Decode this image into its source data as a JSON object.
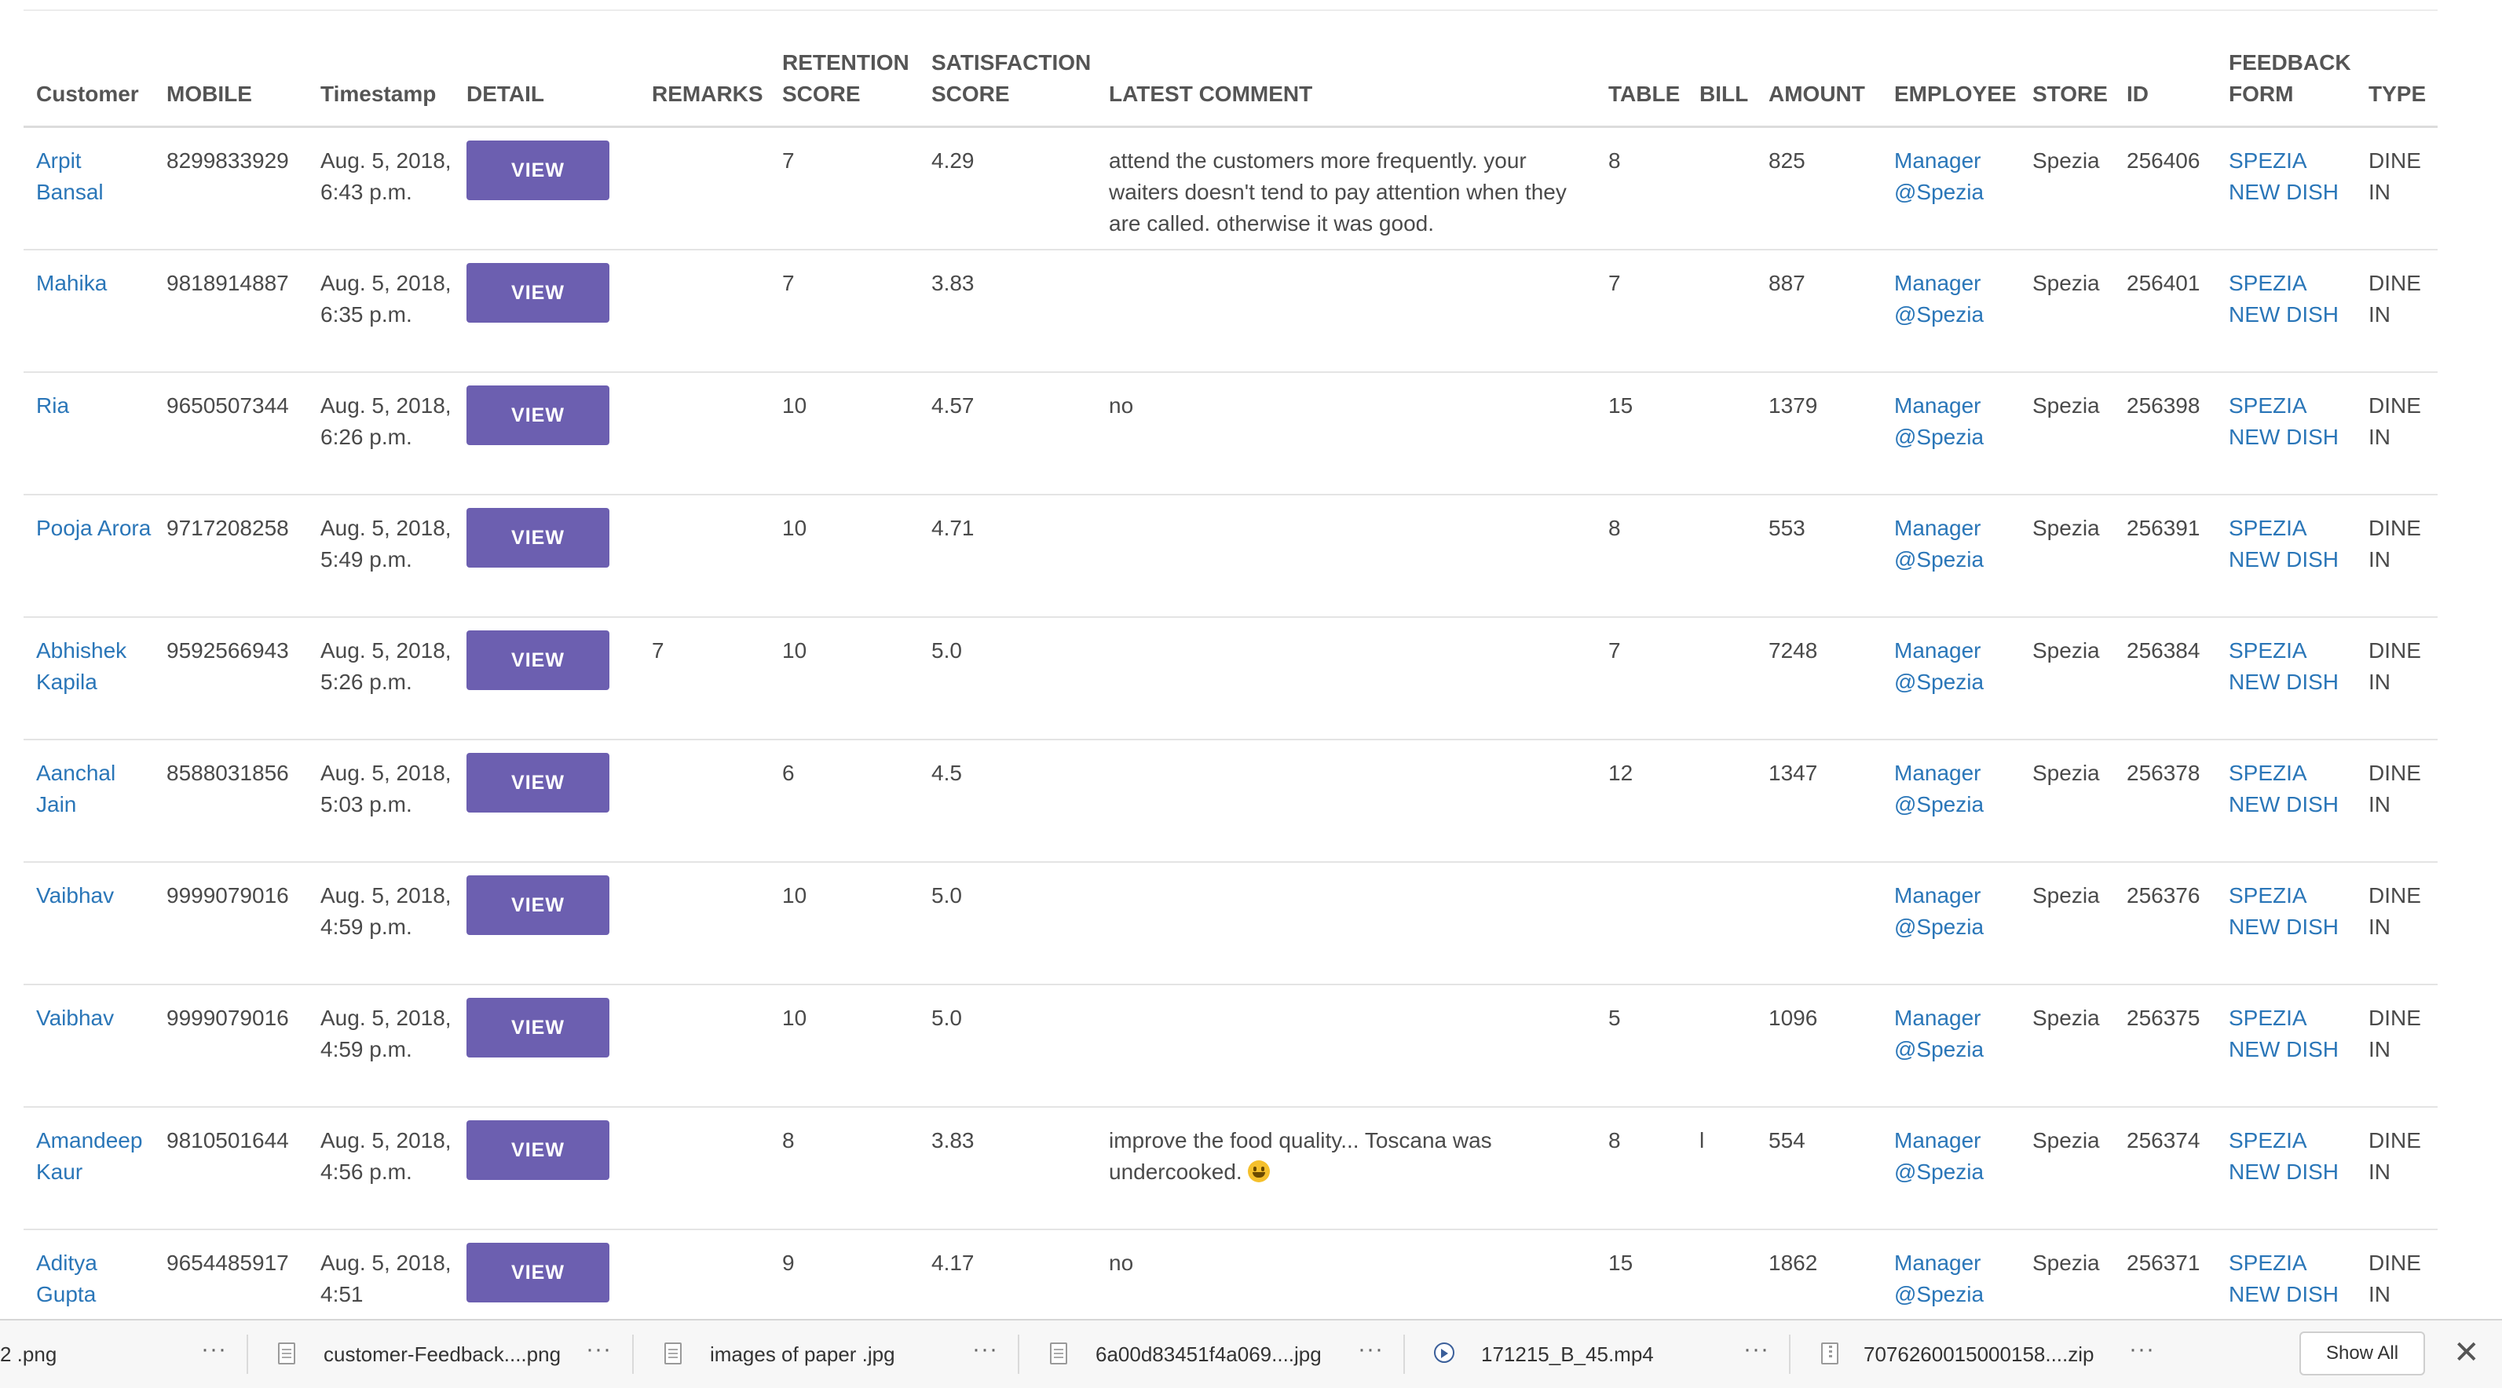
{
  "table": {
    "headers": {
      "customer": "Customer",
      "mobile": "MOBILE",
      "timestamp": "Timestamp",
      "detail": "DETAIL",
      "remarks": "REMARKS",
      "retention_l1": "RETENTION",
      "retention_l2": "SCORE",
      "satisfaction_l1": "SATISFACTION",
      "satisfaction_l2": "SCORE",
      "latest_comment": "LATEST COMMENT",
      "table": "TABLE",
      "bill": "BILL",
      "amount": "AMOUNT",
      "employee": "EMPLOYEE",
      "store": "STORE",
      "id": "ID",
      "feedback_l1": "FEEDBACK",
      "feedback_l2": "FORM",
      "type": "TYPE"
    },
    "view_label": "VIEW",
    "rows": [
      {
        "customer": "Arpit Bansal",
        "mobile": "8299833929",
        "timestamp": "Aug. 5, 2018, 6:43 p.m.",
        "remarks": "",
        "retention": "7",
        "satisfaction": "4.29",
        "comment": "attend the customers more frequently. your waiters doesn't tend to pay attention when they are called. otherwise it was good.",
        "table": "8",
        "bill": "",
        "amount": "825",
        "employee": "Manager @Spezia",
        "store": "Spezia",
        "id": "256406",
        "feedback_form": "SPEZIA NEW DISH",
        "type": "DINE IN"
      },
      {
        "customer": "Mahika",
        "mobile": "9818914887",
        "timestamp": "Aug. 5, 2018, 6:35 p.m.",
        "remarks": "",
        "retention": "7",
        "satisfaction": "3.83",
        "comment": "",
        "table": "7",
        "bill": "",
        "amount": "887",
        "employee": "Manager @Spezia",
        "store": "Spezia",
        "id": "256401",
        "feedback_form": "SPEZIA NEW DISH",
        "type": "DINE IN"
      },
      {
        "customer": "Ria",
        "mobile": "9650507344",
        "timestamp": "Aug. 5, 2018, 6:26 p.m.",
        "remarks": "",
        "retention": "10",
        "satisfaction": "4.57",
        "comment": "no",
        "table": "15",
        "bill": "",
        "amount": "1379",
        "employee": "Manager @Spezia",
        "store": "Spezia",
        "id": "256398",
        "feedback_form": "SPEZIA NEW DISH",
        "type": "DINE IN"
      },
      {
        "customer": "Pooja Arora",
        "mobile": "9717208258",
        "timestamp": "Aug. 5, 2018, 5:49 p.m.",
        "remarks": "",
        "retention": "10",
        "satisfaction": "4.71",
        "comment": "",
        "table": "8",
        "bill": "",
        "amount": "553",
        "employee": "Manager @Spezia",
        "store": "Spezia",
        "id": "256391",
        "feedback_form": "SPEZIA NEW DISH",
        "type": "DINE IN"
      },
      {
        "customer": "Abhishek Kapila",
        "mobile": "9592566943",
        "timestamp": "Aug. 5, 2018, 5:26 p.m.",
        "remarks": "7",
        "retention": "10",
        "satisfaction": "5.0",
        "comment": "",
        "table": "7",
        "bill": "",
        "amount": "7248",
        "employee": "Manager @Spezia",
        "store": "Spezia",
        "id": "256384",
        "feedback_form": "SPEZIA NEW DISH",
        "type": "DINE IN"
      },
      {
        "customer": "Aanchal Jain",
        "mobile": "8588031856",
        "timestamp": "Aug. 5, 2018, 5:03 p.m.",
        "remarks": "",
        "retention": "6",
        "satisfaction": "4.5",
        "comment": "",
        "table": "12",
        "bill": "",
        "amount": "1347",
        "employee": "Manager @Spezia",
        "store": "Spezia",
        "id": "256378",
        "feedback_form": "SPEZIA NEW DISH",
        "type": "DINE IN"
      },
      {
        "customer": "Vaibhav",
        "mobile": "9999079016",
        "timestamp": "Aug. 5, 2018, 4:59 p.m.",
        "remarks": "",
        "retention": "10",
        "satisfaction": "5.0",
        "comment": "",
        "table": "",
        "bill": "",
        "amount": "",
        "employee": "Manager @Spezia",
        "store": "Spezia",
        "id": "256376",
        "feedback_form": "SPEZIA NEW DISH",
        "type": "DINE IN"
      },
      {
        "customer": "Vaibhav",
        "mobile": "9999079016",
        "timestamp": "Aug. 5, 2018, 4:59 p.m.",
        "remarks": "",
        "retention": "10",
        "satisfaction": "5.0",
        "comment": "",
        "table": "5",
        "bill": "",
        "amount": "1096",
        "employee": "Manager @Spezia",
        "store": "Spezia",
        "id": "256375",
        "feedback_form": "SPEZIA NEW DISH",
        "type": "DINE IN"
      },
      {
        "customer": "Amandeep Kaur",
        "mobile": "9810501644",
        "timestamp": "Aug. 5, 2018, 4:56 p.m.",
        "remarks": "",
        "retention": "8",
        "satisfaction": "3.83",
        "comment": "improve the food quality... Toscana was undercooked.",
        "comment_emoji": "grinning-face-emoji",
        "table": "8",
        "bill": "l",
        "amount": "554",
        "employee": "Manager @Spezia",
        "store": "Spezia",
        "id": "256374",
        "feedback_form": "SPEZIA NEW DISH",
        "type": "DINE IN"
      },
      {
        "customer": "Aditya Gupta",
        "mobile": "9654485917",
        "timestamp": "Aug. 5, 2018, 4:51",
        "remarks": "",
        "retention": "9",
        "satisfaction": "4.17",
        "comment": "no",
        "table": "15",
        "bill": "",
        "amount": "1862",
        "employee": "Manager @Spezia",
        "store": "Spezia",
        "id": "256371",
        "feedback_form": "SPEZIA NEW DISH",
        "type": "DINE IN"
      }
    ]
  },
  "downloads": {
    "items": [
      {
        "name": "2 .png",
        "icon": "file-icon"
      },
      {
        "name": "customer-Feedback....png",
        "icon": "file-icon"
      },
      {
        "name": "images of paper .jpg",
        "icon": "file-icon"
      },
      {
        "name": "6a00d83451f4a069....jpg",
        "icon": "file-icon"
      },
      {
        "name": "171215_B_45.mp4",
        "icon": "video-file-icon"
      },
      {
        "name": "7076260015000158....zip",
        "icon": "zip-file-icon"
      }
    ],
    "more_label": "···",
    "show_all_label": "Show All",
    "close_label": "✕"
  }
}
